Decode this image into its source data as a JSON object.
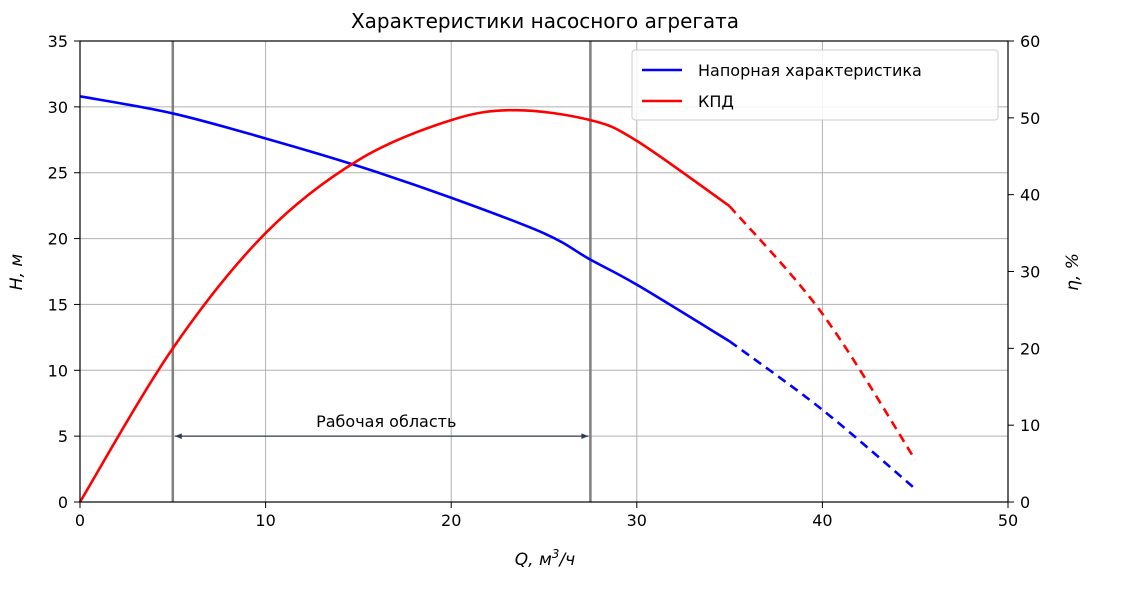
{
  "chart_data": {
    "type": "line",
    "title": "Характеристики насосного агрегата",
    "xlabel": "Q, м³/ч",
    "xlabel_main": "Q, м",
    "xlabel_sup": "3",
    "xlabel_tail": "/ч",
    "ylabel_left": "H, м",
    "ylabel_right": "η, %",
    "xlim": [
      0,
      50
    ],
    "ylim_left": [
      0,
      35
    ],
    "ylim_right": [
      0,
      60
    ],
    "xticks": [
      "0",
      "10",
      "20",
      "30",
      "40",
      "50"
    ],
    "yticks_left": [
      "0",
      "5",
      "10",
      "15",
      "20",
      "25",
      "30",
      "35"
    ],
    "yticks_right": [
      "0",
      "10",
      "20",
      "30",
      "40",
      "50",
      "60"
    ],
    "grid": true,
    "legend_position": "top-right",
    "series": [
      {
        "name": "Напорная характеристика",
        "axis": "left",
        "color": "#0000ff",
        "solid_range": [
          0,
          35
        ],
        "dashed_range": [
          35,
          45
        ],
        "x": [
          0,
          5,
          10,
          15,
          20,
          25,
          27.5,
          30,
          35,
          40,
          45
        ],
        "y": [
          30.8,
          29.5,
          27.6,
          25.5,
          23.1,
          20.4,
          18.4,
          16.5,
          12.2,
          7.0,
          1.0
        ]
      },
      {
        "name": "КПД",
        "axis": "right",
        "color": "#ff0000",
        "solid_range": [
          0,
          35
        ],
        "dashed_range": [
          35,
          45
        ],
        "x": [
          0,
          5,
          10,
          15,
          20,
          23.5,
          27.5,
          30,
          35,
          40,
          45
        ],
        "y": [
          0,
          20,
          35,
          44.5,
          49.7,
          51,
          49.7,
          47,
          38.5,
          24.5,
          5.5
        ]
      }
    ],
    "vlines": [
      {
        "x": 5,
        "color": "#808080"
      },
      {
        "x": 27.5,
        "color": "#808080"
      }
    ],
    "annotations": [
      {
        "text": "Рабочая область",
        "text_x": 16.5,
        "text_y": 5.7,
        "arrow_from_x": 5,
        "arrow_to_x": 27.5,
        "arrow_y": 5
      }
    ]
  }
}
